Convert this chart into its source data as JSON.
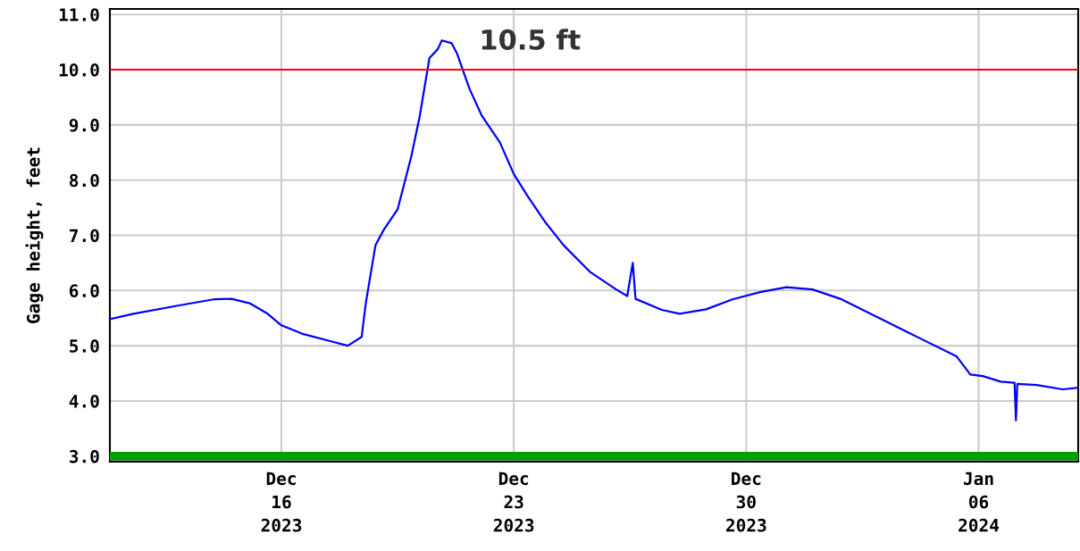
{
  "chart_data": {
    "type": "line",
    "ylabel": "Gage height, feet",
    "x": [
      "2023-12-10T20:00",
      "2023-12-11T13:00",
      "2023-12-12T22:00",
      "2023-12-13T23:00",
      "2023-12-14T12:00",
      "2023-12-15T01:00",
      "2023-12-15T14:00",
      "2023-12-16T00:00",
      "2023-12-16T16:00",
      "2023-12-17T12:00",
      "2023-12-18T00:00",
      "2023-12-18T10:00",
      "2023-12-18T13:00",
      "2023-12-18T20:00",
      "2023-12-19T02:00",
      "2023-12-19T12:00",
      "2023-12-19T22:00",
      "2023-12-20T04:00",
      "2023-12-20T11:00",
      "2023-12-20T17:00",
      "2023-12-20T20:00",
      "2023-12-21T03:00",
      "2023-12-21T07:00",
      "2023-12-21T16:00",
      "2023-12-22T01:00",
      "2023-12-22T14:00",
      "2023-12-23T00:00",
      "2023-12-23T10:00",
      "2023-12-23T23:00",
      "2023-12-24T12:00",
      "2023-12-25T07:00",
      "2023-12-26T02:00",
      "2023-12-26T10:00",
      "2023-12-26T14:00",
      "2023-12-26T16:00",
      "2023-12-27T11:00",
      "2023-12-28T00:00",
      "2023-12-28T19:00",
      "2023-12-29T14:00",
      "2023-12-30T10:00",
      "2023-12-31T05:00",
      "2024-01-01T00:00",
      "2024-01-01T20:00",
      "2024-01-02T22:00",
      "2024-01-04T06:00",
      "2024-01-05T08:00",
      "2024-01-05T18:00",
      "2024-01-06T03:00",
      "2024-01-06T16:00",
      "2024-01-07T02:00",
      "2024-01-07T03:00",
      "2024-01-07T04:00",
      "2024-01-07T18:00",
      "2024-01-08T13:00",
      "2024-01-09T00:00"
    ],
    "series": [
      {
        "color": "#0000ff",
        "values": [
          5.48,
          5.58,
          5.73,
          5.84,
          5.85,
          5.77,
          5.58,
          5.37,
          5.21,
          5.08,
          5.0,
          5.16,
          5.77,
          6.82,
          7.1,
          7.47,
          8.44,
          9.16,
          10.21,
          10.37,
          10.53,
          10.48,
          10.29,
          9.65,
          9.16,
          8.68,
          8.11,
          7.71,
          7.23,
          6.82,
          6.34,
          6.02,
          5.9,
          6.5,
          5.85,
          5.65,
          5.58,
          5.66,
          5.84,
          5.97,
          6.06,
          6.02,
          5.85,
          5.53,
          5.13,
          4.81,
          4.48,
          4.45,
          4.35,
          4.33,
          3.65,
          4.31,
          4.29,
          4.21,
          4.24
        ]
      }
    ],
    "xlim": [
      "2023-12-10T20:00",
      "2024-01-09T00:00"
    ],
    "xticks": [
      {
        "value": "2023-12-16",
        "label": "Dec\n16\n2023"
      },
      {
        "value": "2023-12-23",
        "label": "Dec\n23\n2023"
      },
      {
        "value": "2023-12-30",
        "label": "Dec\n30\n2023"
      },
      {
        "value": "2024-01-06",
        "label": "Jan\n06\n2024"
      }
    ],
    "ylim": [
      2.9,
      11.1
    ],
    "yticks": [
      {
        "value": 3,
        "label": "3.0"
      },
      {
        "value": 4,
        "label": "4.0"
      },
      {
        "value": 5,
        "label": "5.0"
      },
      {
        "value": 6,
        "label": "6.0"
      },
      {
        "value": 7,
        "label": "7.0"
      },
      {
        "value": 8,
        "label": "8.0"
      },
      {
        "value": 9,
        "label": "9.0"
      },
      {
        "value": 10,
        "label": "10.0"
      },
      {
        "value": 11,
        "label": "11.0"
      }
    ],
    "ref_lines": [
      {
        "axis": "y",
        "value": 10,
        "color": "#ff0000"
      },
      {
        "axis": "y",
        "value": 3,
        "color": "#00a000"
      }
    ],
    "annotations": [
      {
        "text": "10.5 ft",
        "x": "2023-12-20T20:00",
        "y": 10.5
      }
    ],
    "grid": true,
    "legend": false
  }
}
